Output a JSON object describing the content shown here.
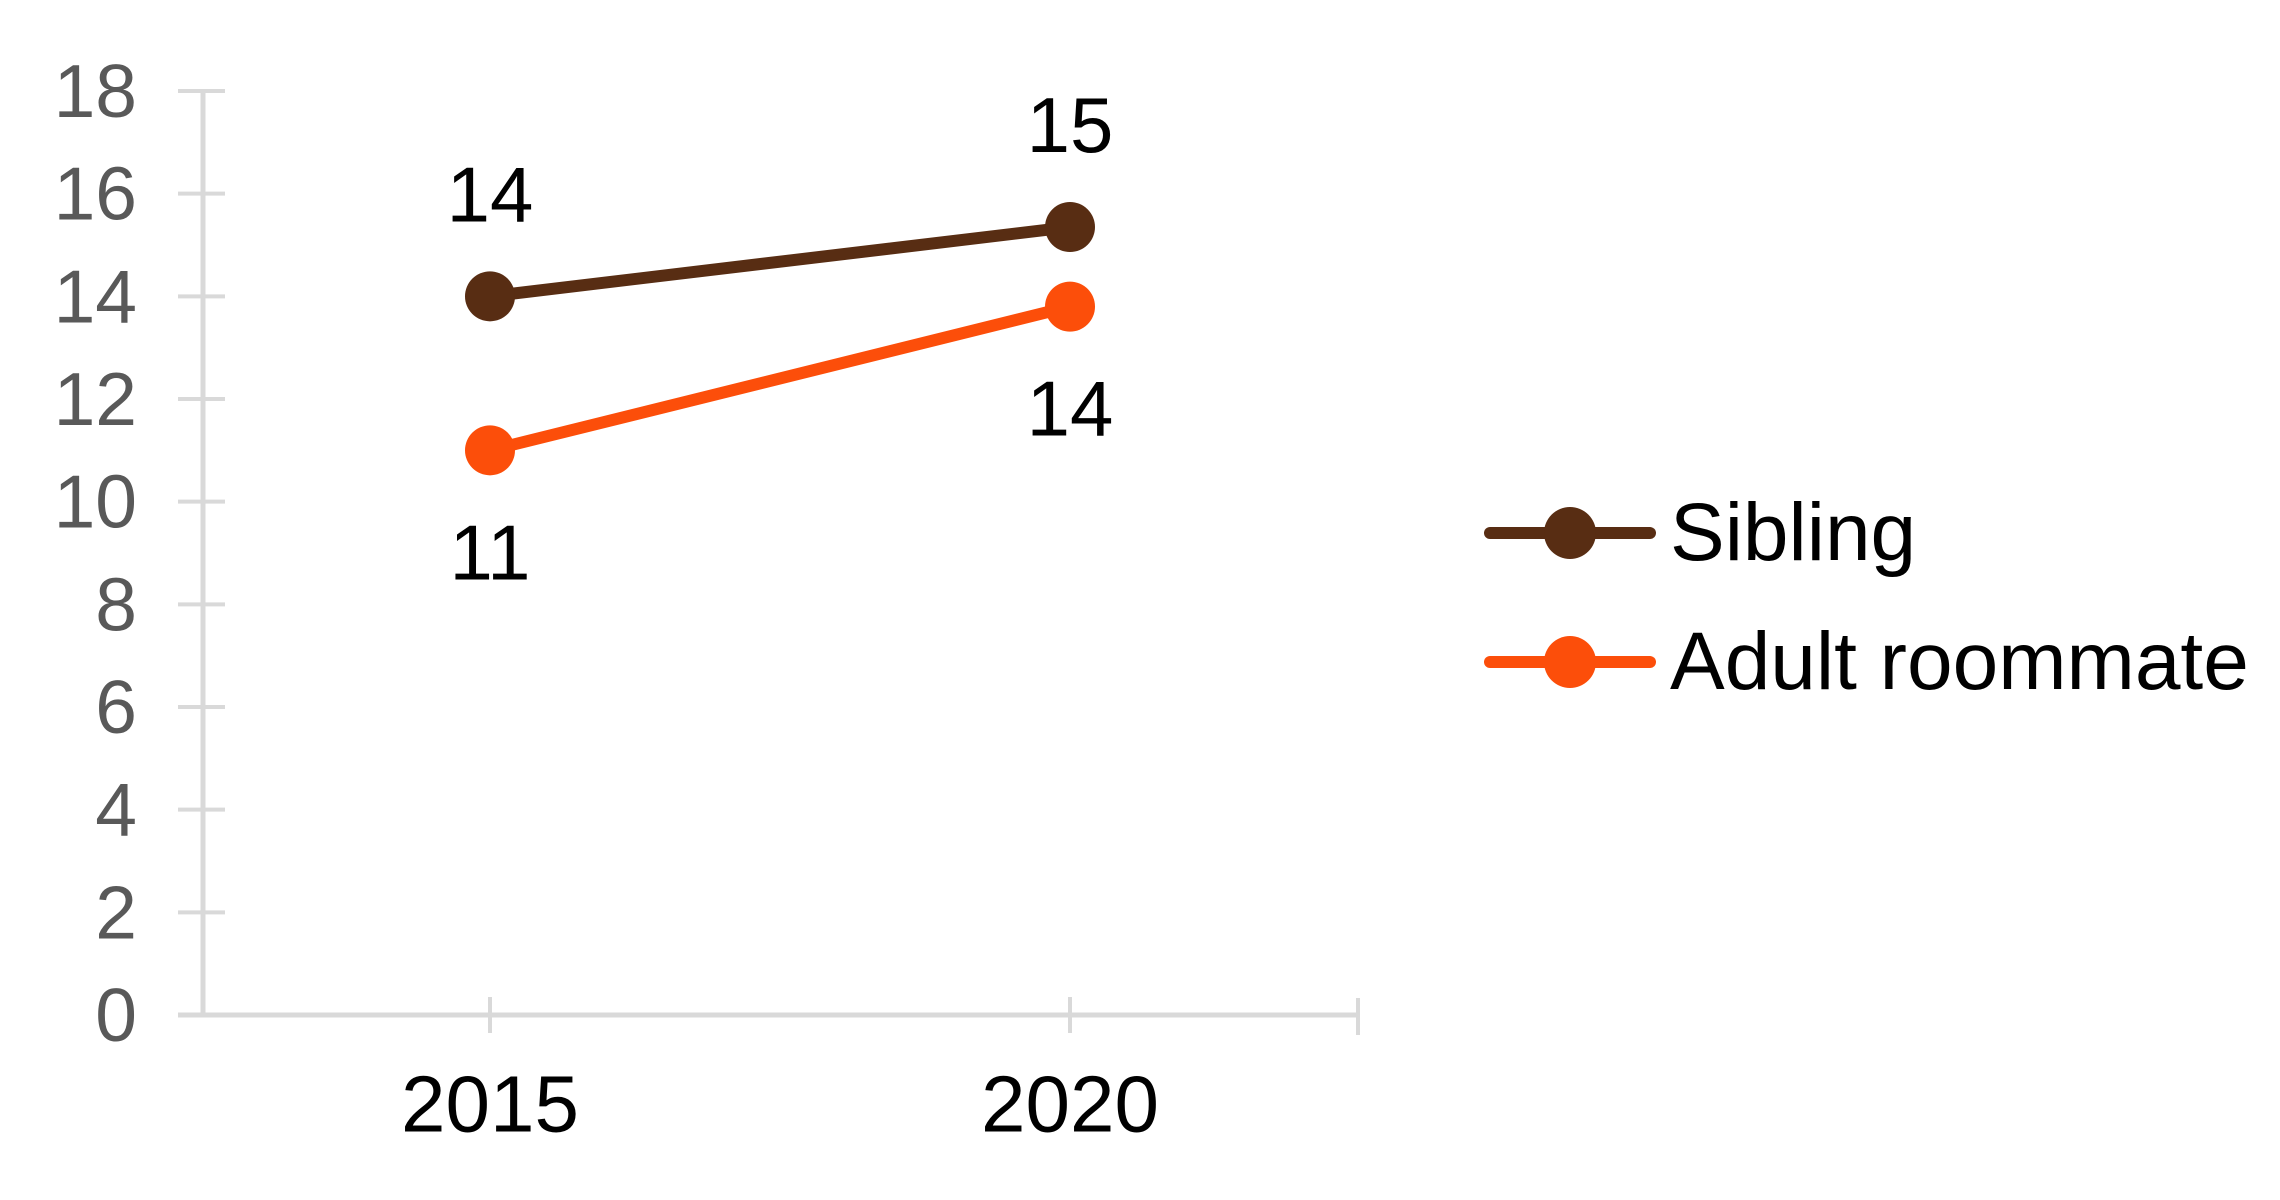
{
  "chart_data": {
    "type": "line",
    "title": "",
    "categories": [
      "2015",
      "2020"
    ],
    "series": [
      {
        "name": "Sibling",
        "color": "#582D13",
        "values": [
          14,
          15
        ],
        "plotted_values": [
          14.0,
          15.35
        ],
        "data_labels": [
          "14",
          "15"
        ],
        "label_position": "above"
      },
      {
        "name": "Adult roommate",
        "color": "#FC4E0A",
        "values": [
          11,
          14
        ],
        "plotted_values": [
          11.0,
          13.8
        ],
        "data_labels": [
          "11",
          "14"
        ],
        "label_position": "below"
      }
    ],
    "y_axis": {
      "min": 0,
      "max": 18,
      "step": 2,
      "tick_labels": [
        "0",
        "2",
        "4",
        "6",
        "8",
        "10",
        "12",
        "14",
        "16",
        "18"
      ]
    },
    "x_axis": {
      "tick_labels": [
        "2015",
        "2020"
      ]
    },
    "legend": {
      "position": "right",
      "items": [
        "Sibling",
        "Adult roommate"
      ]
    },
    "grid": false,
    "data_labels_shown": true,
    "colors": {
      "background": "#FFFFFF",
      "axis_line": "#D9D9D9",
      "y_tick_label": "#595959",
      "x_tick_label": "#000000",
      "data_label": "#000000",
      "legend_text": "#000000"
    }
  }
}
